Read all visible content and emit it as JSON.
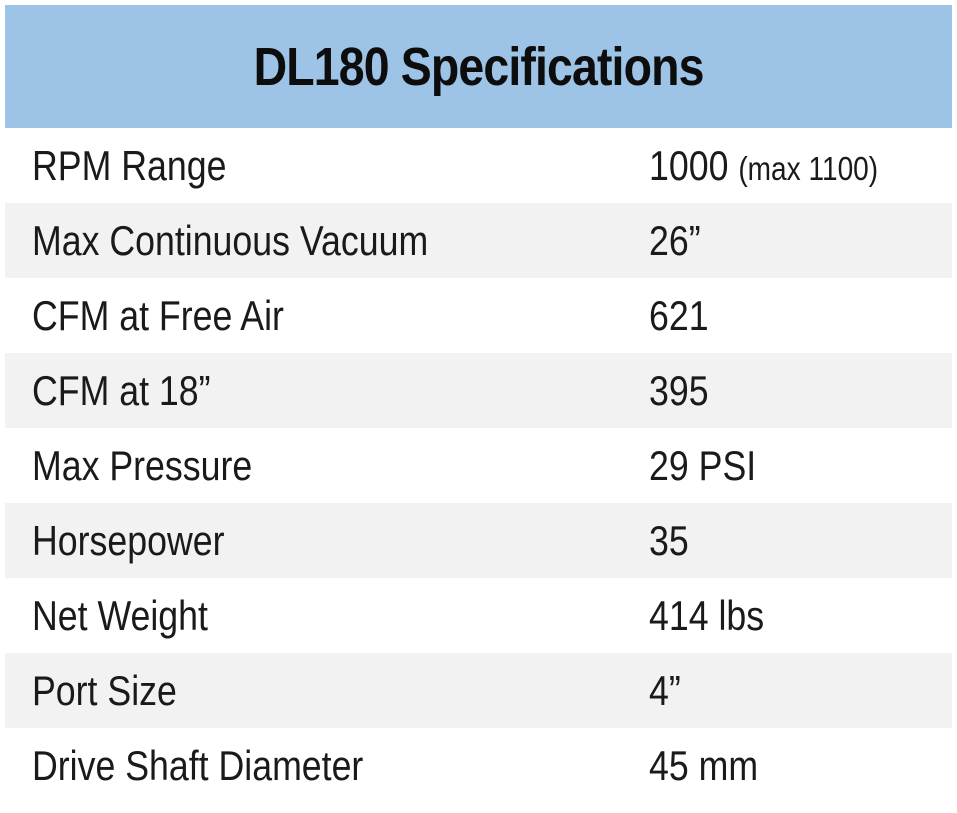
{
  "title": "DL180 Specifications",
  "colors": {
    "header_background": "#9dc3e6",
    "row_alternate": "#f2f2f2",
    "text": "#1a1a1a"
  },
  "specs": [
    {
      "label": "RPM Range",
      "value": "1000",
      "note": "(max 1100)"
    },
    {
      "label": "Max Continuous Vacuum",
      "value": "26”"
    },
    {
      "label": "CFM at Free Air",
      "value": "621"
    },
    {
      "label": "CFM at 18”",
      "value": "395"
    },
    {
      "label": "Max Pressure",
      "value": "29 PSI"
    },
    {
      "label": "Horsepower",
      "value": "35"
    },
    {
      "label": "Net Weight",
      "value": "414 lbs"
    },
    {
      "label": "Port Size",
      "value": "4”"
    },
    {
      "label": "Drive Shaft Diameter",
      "value": "45 mm"
    }
  ]
}
